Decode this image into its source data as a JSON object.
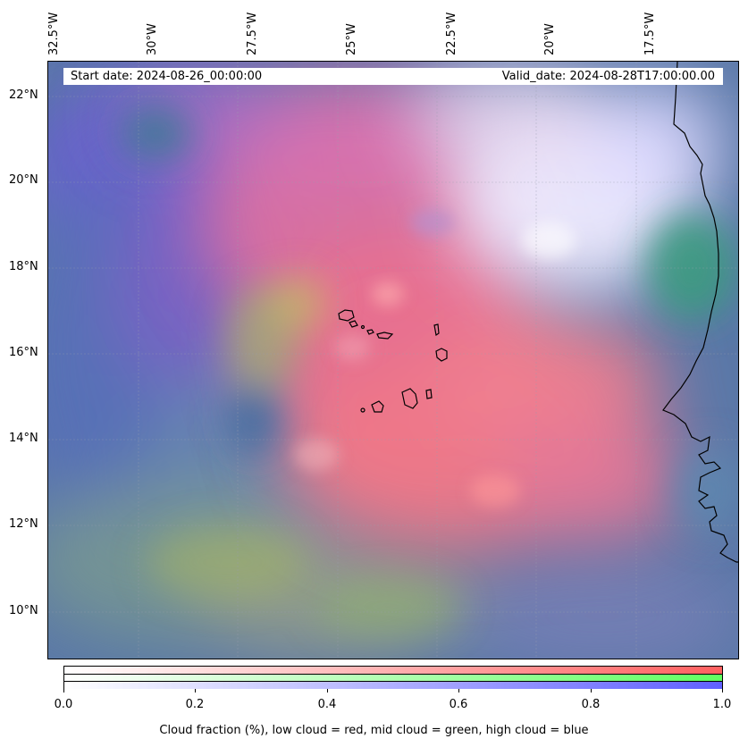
{
  "map": {
    "start_date": "Start date: 2024-08-26_00:00:00",
    "valid_date": "Valid_date: 2024-08-28T17:00:00.00",
    "longitude_labels": [
      "32.5°W",
      "30°W",
      "27.5°W",
      "25°W",
      "22.5°W",
      "20°W",
      "17.5°W"
    ],
    "latitude_labels": [
      "22°N",
      "20°N",
      "18°N",
      "16°N",
      "14°N",
      "12°N",
      "10°N"
    ],
    "features": [
      "coastline-west-africa",
      "cape-verde-islands"
    ],
    "colors": {
      "low_cloud": "#ff6060",
      "mid_cloud": "#60ff60",
      "high_cloud": "#6060ff",
      "background": "#5a78a8"
    }
  },
  "colorbar": {
    "ticks": [
      "0.0",
      "0.2",
      "0.4",
      "0.6",
      "0.8",
      "1.0"
    ],
    "label": "Cloud fraction (%), low cloud = red, mid cloud = green, high cloud = blue"
  }
}
